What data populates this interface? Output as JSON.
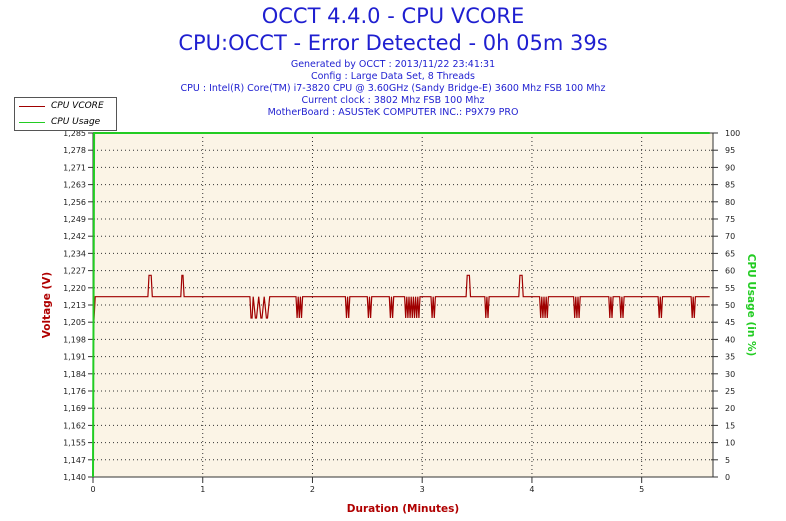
{
  "header": {
    "title": "OCCT 4.4.0 - CPU VCORE",
    "subtitle": "CPU:OCCT - Error Detected - 0h 05m 39s",
    "info_lines": [
      "Generated by OCCT : 2013/11/22 23:41:31",
      "Config : Large Data Set, 8 Threads",
      "CPU : Intel(R) Core(TM) i7-3820 CPU @ 3.60GHz (Sandy Bridge-E) 3600 Mhz FSB 100 Mhz",
      "Current clock : 3802 Mhz FSB 100 Mhz",
      "MotherBoard : ASUSTeK COMPUTER INC.: P9X79 PRO"
    ]
  },
  "legend": [
    {
      "label": "CPU VCORE",
      "color": "#a00000"
    },
    {
      "label": "CPU Usage",
      "color": "#22cc22"
    }
  ],
  "colors": {
    "title": "#1f1fd0",
    "axis_label": "#b00000",
    "usage_label": "#22cc22",
    "plot_bg": "#fbf4e6",
    "vcore_line": "#a00000",
    "usage_line": "#22cc22"
  },
  "chart_data": {
    "type": "line",
    "xlabel": "Duration (Minutes)",
    "ylabel": "Voltage (V)",
    "y2label": "CPU Usage (in %)",
    "xlim": [
      0,
      5.65
    ],
    "ylim": [
      1.14,
      1.285
    ],
    "y2lim": [
      0,
      100
    ],
    "x_ticks": [
      "0",
      "1",
      "2",
      "3",
      "4",
      "5"
    ],
    "y_ticks": [
      "1,140",
      "1,147",
      "1,155",
      "1,162",
      "1,169",
      "1,176",
      "1,184",
      "1,191",
      "1,198",
      "1,205",
      "1,213",
      "1,220",
      "1,227",
      "1,234",
      "1,242",
      "1,249",
      "1,256",
      "1,263",
      "1,271",
      "1,278",
      "1,285"
    ],
    "y2_ticks": [
      "0",
      "5",
      "10",
      "15",
      "20",
      "25",
      "30",
      "35",
      "40",
      "45",
      "50",
      "55",
      "60",
      "65",
      "70",
      "75",
      "80",
      "85",
      "90",
      "95",
      "100"
    ],
    "grid": true,
    "legend_position": "top-left",
    "series": [
      {
        "name": "CPU VCORE",
        "axis": "left",
        "x": [
          0,
          0.02,
          0.03,
          0.04,
          0.5,
          0.51,
          0.53,
          0.54,
          0.8,
          0.81,
          0.82,
          0.83,
          1.4,
          1.43,
          1.44,
          1.45,
          1.46,
          1.48,
          1.49,
          1.51,
          1.53,
          1.54,
          1.56,
          1.58,
          1.59,
          1.61,
          1.62,
          1.85,
          1.86,
          1.87,
          1.88,
          1.89,
          1.9,
          1.91,
          2.3,
          2.31,
          2.32,
          2.33,
          2.34,
          2.5,
          2.51,
          2.52,
          2.53,
          2.54,
          2.7,
          2.71,
          2.72,
          2.73,
          2.74,
          2.84,
          2.85,
          2.86,
          2.87,
          2.88,
          2.89,
          2.9,
          2.91,
          2.92,
          2.93,
          2.94,
          2.95,
          2.96,
          2.97,
          2.98,
          3.08,
          3.09,
          3.1,
          3.11,
          3.12,
          3.4,
          3.41,
          3.43,
          3.44,
          3.57,
          3.58,
          3.59,
          3.6,
          3.61,
          3.88,
          3.89,
          3.91,
          3.92,
          4.07,
          4.08,
          4.09,
          4.1,
          4.11,
          4.12,
          4.13,
          4.14,
          4.15,
          4.16,
          4.38,
          4.39,
          4.4,
          4.41,
          4.42,
          4.43,
          4.44,
          4.7,
          4.71,
          4.72,
          4.73,
          4.74,
          4.8,
          4.81,
          4.82,
          4.83,
          4.84,
          5.15,
          5.16,
          5.17,
          5.18,
          5.19,
          5.45,
          5.46,
          5.47,
          5.48,
          5.49,
          5.62
        ],
        "y": [
          1.198,
          1.216,
          1.216,
          1.216,
          1.216,
          1.225,
          1.225,
          1.216,
          1.216,
          1.225,
          1.225,
          1.216,
          1.216,
          1.216,
          1.207,
          1.207,
          1.216,
          1.207,
          1.207,
          1.216,
          1.207,
          1.207,
          1.216,
          1.207,
          1.207,
          1.216,
          1.216,
          1.216,
          1.207,
          1.216,
          1.207,
          1.216,
          1.207,
          1.216,
          1.216,
          1.207,
          1.216,
          1.207,
          1.216,
          1.216,
          1.207,
          1.216,
          1.207,
          1.216,
          1.216,
          1.207,
          1.216,
          1.207,
          1.216,
          1.216,
          1.207,
          1.216,
          1.207,
          1.216,
          1.207,
          1.216,
          1.207,
          1.216,
          1.207,
          1.216,
          1.207,
          1.216,
          1.207,
          1.216,
          1.216,
          1.207,
          1.216,
          1.207,
          1.216,
          1.216,
          1.225,
          1.225,
          1.216,
          1.216,
          1.207,
          1.216,
          1.207,
          1.216,
          1.216,
          1.225,
          1.225,
          1.216,
          1.216,
          1.207,
          1.216,
          1.207,
          1.216,
          1.207,
          1.216,
          1.207,
          1.216,
          1.216,
          1.216,
          1.207,
          1.216,
          1.207,
          1.216,
          1.207,
          1.216,
          1.216,
          1.207,
          1.216,
          1.207,
          1.216,
          1.216,
          1.207,
          1.216,
          1.207,
          1.216,
          1.216,
          1.207,
          1.216,
          1.207,
          1.216,
          1.216,
          1.207,
          1.216,
          1.207,
          1.216,
          1.216
        ]
      },
      {
        "name": "CPU Usage",
        "axis": "right",
        "x": [
          0,
          0.01,
          5.62
        ],
        "y": [
          0,
          100,
          100
        ]
      }
    ]
  }
}
